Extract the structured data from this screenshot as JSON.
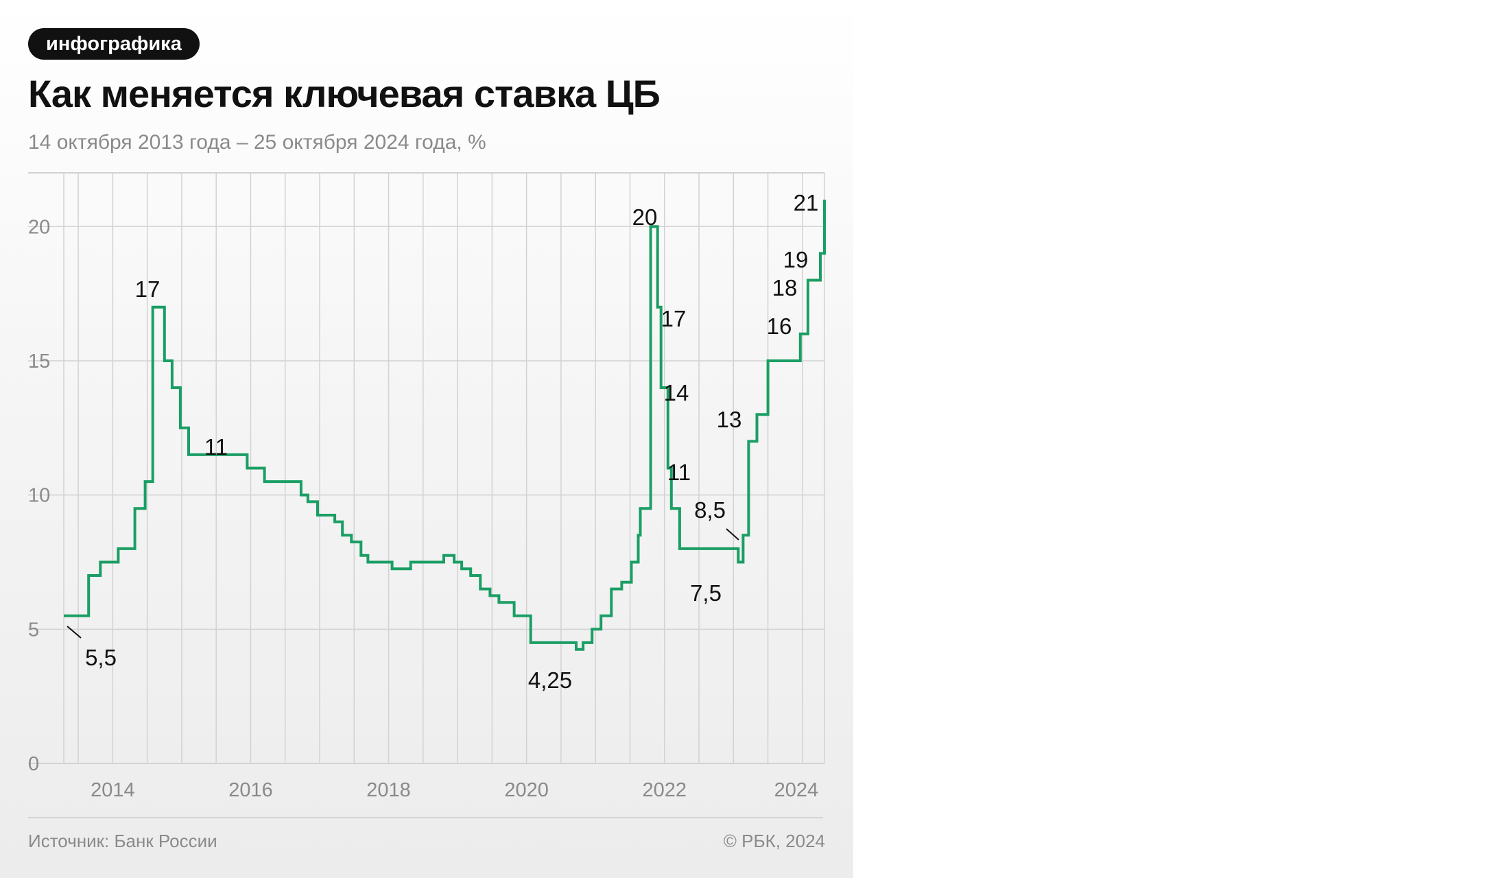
{
  "tag": "инфографика",
  "title": "Как меняется ключевая ставка ЦБ",
  "subtitle": "14 октября 2013 года – 25 октября 2024 года, %",
  "source": "Источник: Банк России",
  "copyright": "© РБК, 2024",
  "colors": {
    "line": "#1a9e64",
    "grid": "#d2d2d2",
    "axis_text": "#8a8a8a",
    "label_text": "#111111"
  },
  "chart_data": {
    "type": "line",
    "step": true,
    "title": "Как меняется ключевая ставка ЦБ",
    "subtitle": "14 октября 2013 года – 25 октября 2024 года, %",
    "xlim": [
      2013.79,
      2024.82
    ],
    "ylim": [
      0,
      22
    ],
    "yticks": [
      0,
      5,
      10,
      15,
      20
    ],
    "xtick_labels": [
      "2014",
      "2016",
      "2018",
      "2020",
      "2022",
      "2024"
    ],
    "grid": true,
    "x": [
      2013.79,
      2014.15,
      2014.32,
      2014.58,
      2014.82,
      2014.97,
      2015.08,
      2015.25,
      2015.36,
      2015.48,
      2015.6,
      2016.45,
      2016.7,
      2017.23,
      2017.33,
      2017.47,
      2017.72,
      2017.83,
      2017.96,
      2018.1,
      2018.2,
      2018.55,
      2018.82,
      2019.3,
      2019.45,
      2019.56,
      2019.69,
      2019.83,
      2019.97,
      2020.1,
      2020.32,
      2020.56,
      2021.22,
      2021.32,
      2021.45,
      2021.58,
      2021.73,
      2021.88,
      2022.02,
      2022.12,
      2022.15,
      2022.3,
      2022.4,
      2022.45,
      2022.55,
      2022.6,
      2022.72,
      2023.57,
      2023.64,
      2023.72,
      2023.84,
      2024.0,
      2024.47,
      2024.58,
      2024.76,
      2024.82
    ],
    "y": [
      5.5,
      7.0,
      7.5,
      8.0,
      9.5,
      10.5,
      17.0,
      15.0,
      14.0,
      12.5,
      11.5,
      11.0,
      10.5,
      10.0,
      9.75,
      9.25,
      9.0,
      8.5,
      8.25,
      7.75,
      7.5,
      7.25,
      7.5,
      7.75,
      7.5,
      7.25,
      7.0,
      6.5,
      6.25,
      6.0,
      5.5,
      4.5,
      4.25,
      4.5,
      5.0,
      5.5,
      6.5,
      6.75,
      7.5,
      8.5,
      9.5,
      20.0,
      17.0,
      14.0,
      11.0,
      9.5,
      8.0,
      7.5,
      8.5,
      12.0,
      13.0,
      15.0,
      16.0,
      18.0,
      19.0,
      21.0
    ],
    "annotations": [
      {
        "label": "5,5",
        "value": 5.5
      },
      {
        "label": "17",
        "value": 17
      },
      {
        "label": "11",
        "value": 11
      },
      {
        "label": "4,25",
        "value": 4.25
      },
      {
        "label": "20",
        "value": 20
      },
      {
        "label": "17",
        "value": 17
      },
      {
        "label": "14",
        "value": 14
      },
      {
        "label": "11",
        "value": 11
      },
      {
        "label": "7,5",
        "value": 7.5
      },
      {
        "label": "8,5",
        "value": 8.5
      },
      {
        "label": "13",
        "value": 13
      },
      {
        "label": "16",
        "value": 16
      },
      {
        "label": "18",
        "value": 18
      },
      {
        "label": "19",
        "value": 19
      },
      {
        "label": "21",
        "value": 21
      }
    ]
  }
}
